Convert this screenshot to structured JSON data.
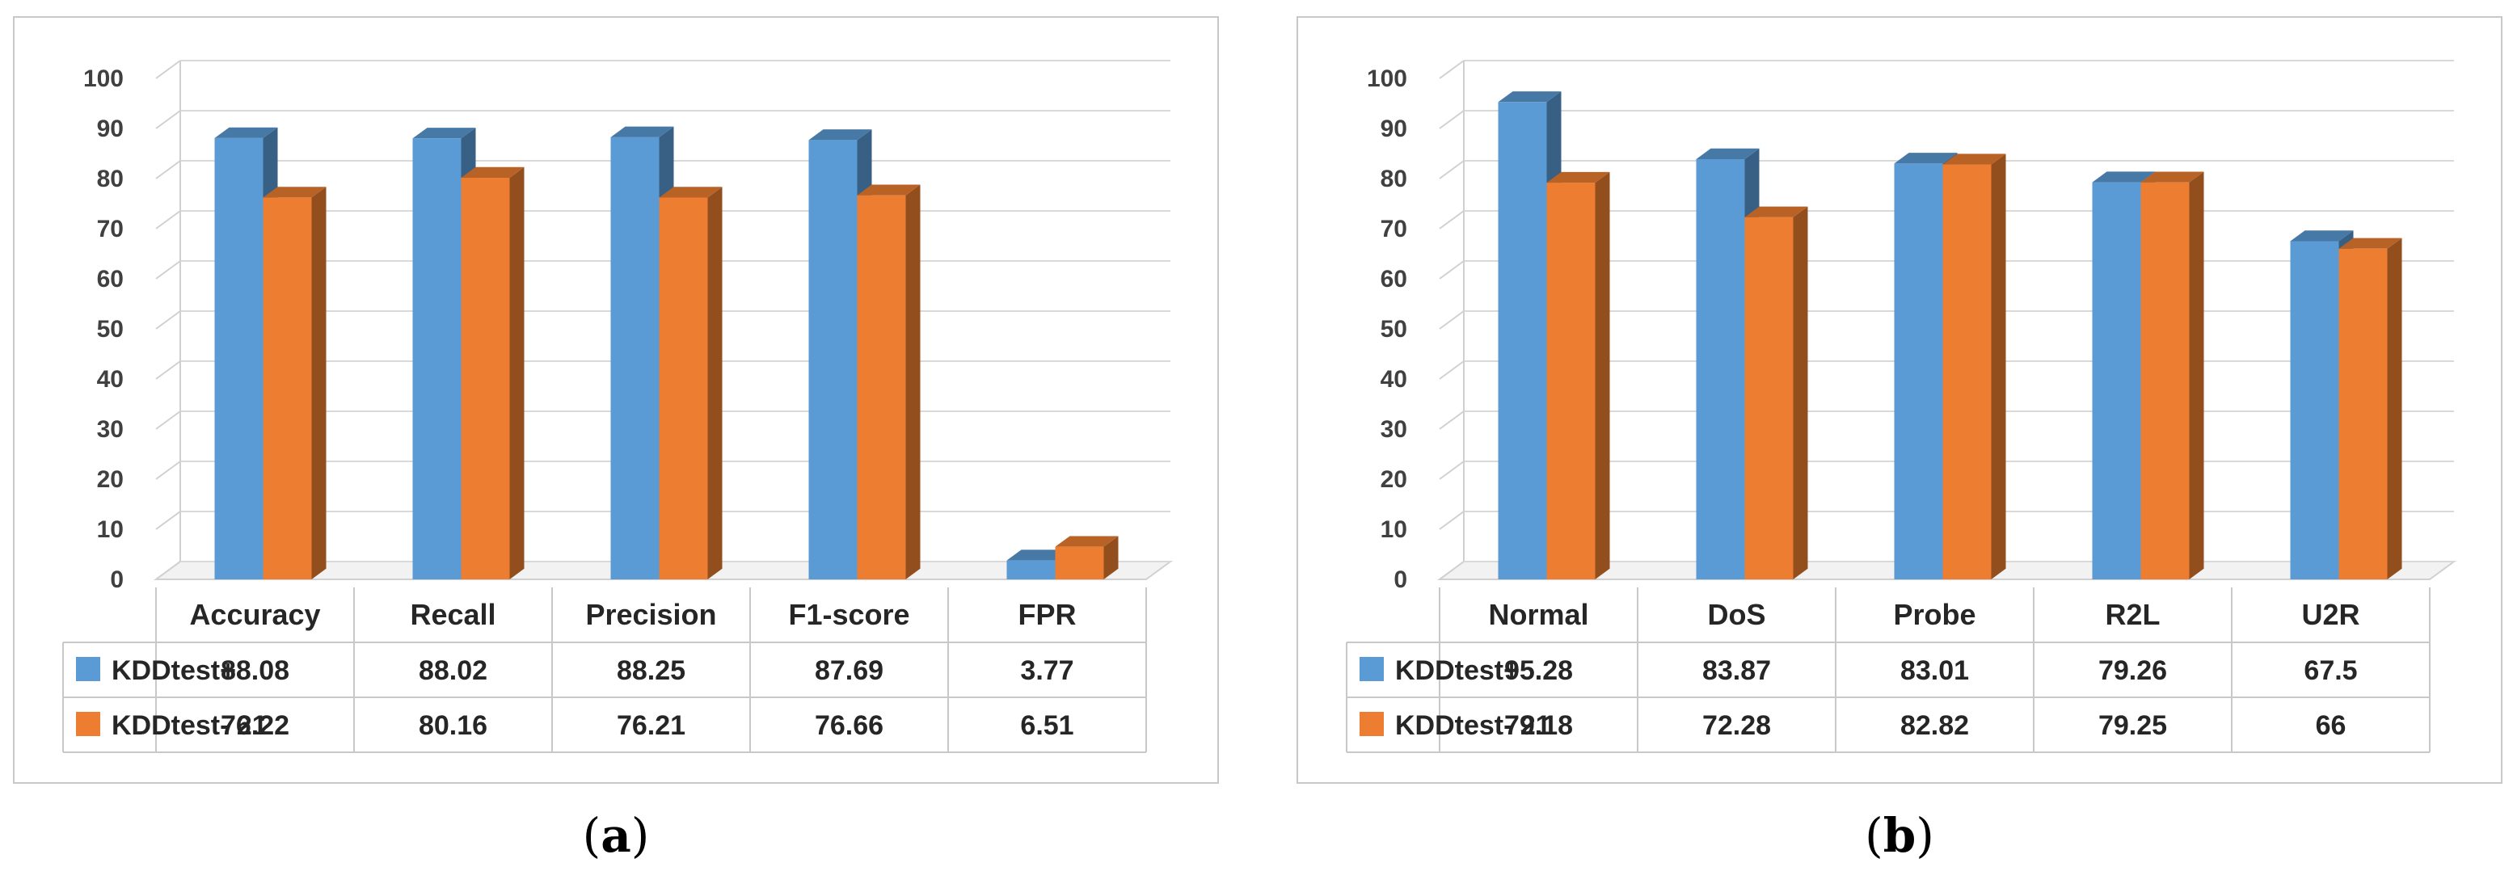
{
  "chart_data": [
    {
      "type": "bar",
      "panel_id": "a",
      "categories": [
        "Accuracy",
        "Recall",
        "Precision",
        "F1-score",
        "FPR"
      ],
      "series": [
        {
          "name": "KDDtest+",
          "values": [
            "88.08",
            "88.02",
            "88.25",
            "87.69",
            "3.77"
          ],
          "color": "#5B9BD5"
        },
        {
          "name": "KDDtest- 21",
          "values": [
            "76.22",
            "80.16",
            "76.21",
            "76.66",
            "6.51"
          ],
          "color": "#ED7D31"
        }
      ],
      "yticks": [
        "0",
        "10",
        "20",
        "30",
        "40",
        "50",
        "60",
        "70",
        "80",
        "90",
        "100"
      ],
      "ylim": [
        0,
        100
      ],
      "grid": true,
      "legend": "data table below chart",
      "caption_open": "(",
      "caption_label": "a",
      "caption_close": ")"
    },
    {
      "type": "bar",
      "panel_id": "b",
      "categories": [
        "Normal",
        "DoS",
        "Probe",
        "R2L",
        "U2R"
      ],
      "series": [
        {
          "name": "KDDtest+",
          "values": [
            "95.28",
            "83.87",
            "83.01",
            "79.26",
            "67.5"
          ],
          "color": "#5B9BD5"
        },
        {
          "name": "KDDtest- 21",
          "values": [
            "79.18",
            "72.28",
            "82.82",
            "79.25",
            "66"
          ],
          "color": "#ED7D31"
        }
      ],
      "yticks": [
        "0",
        "10",
        "20",
        "30",
        "40",
        "50",
        "60",
        "70",
        "80",
        "90",
        "100"
      ],
      "ylim": [
        0,
        100
      ],
      "grid": true,
      "legend": "data table below chart",
      "caption_open": "(",
      "caption_label": "b",
      "caption_close": ")"
    }
  ]
}
